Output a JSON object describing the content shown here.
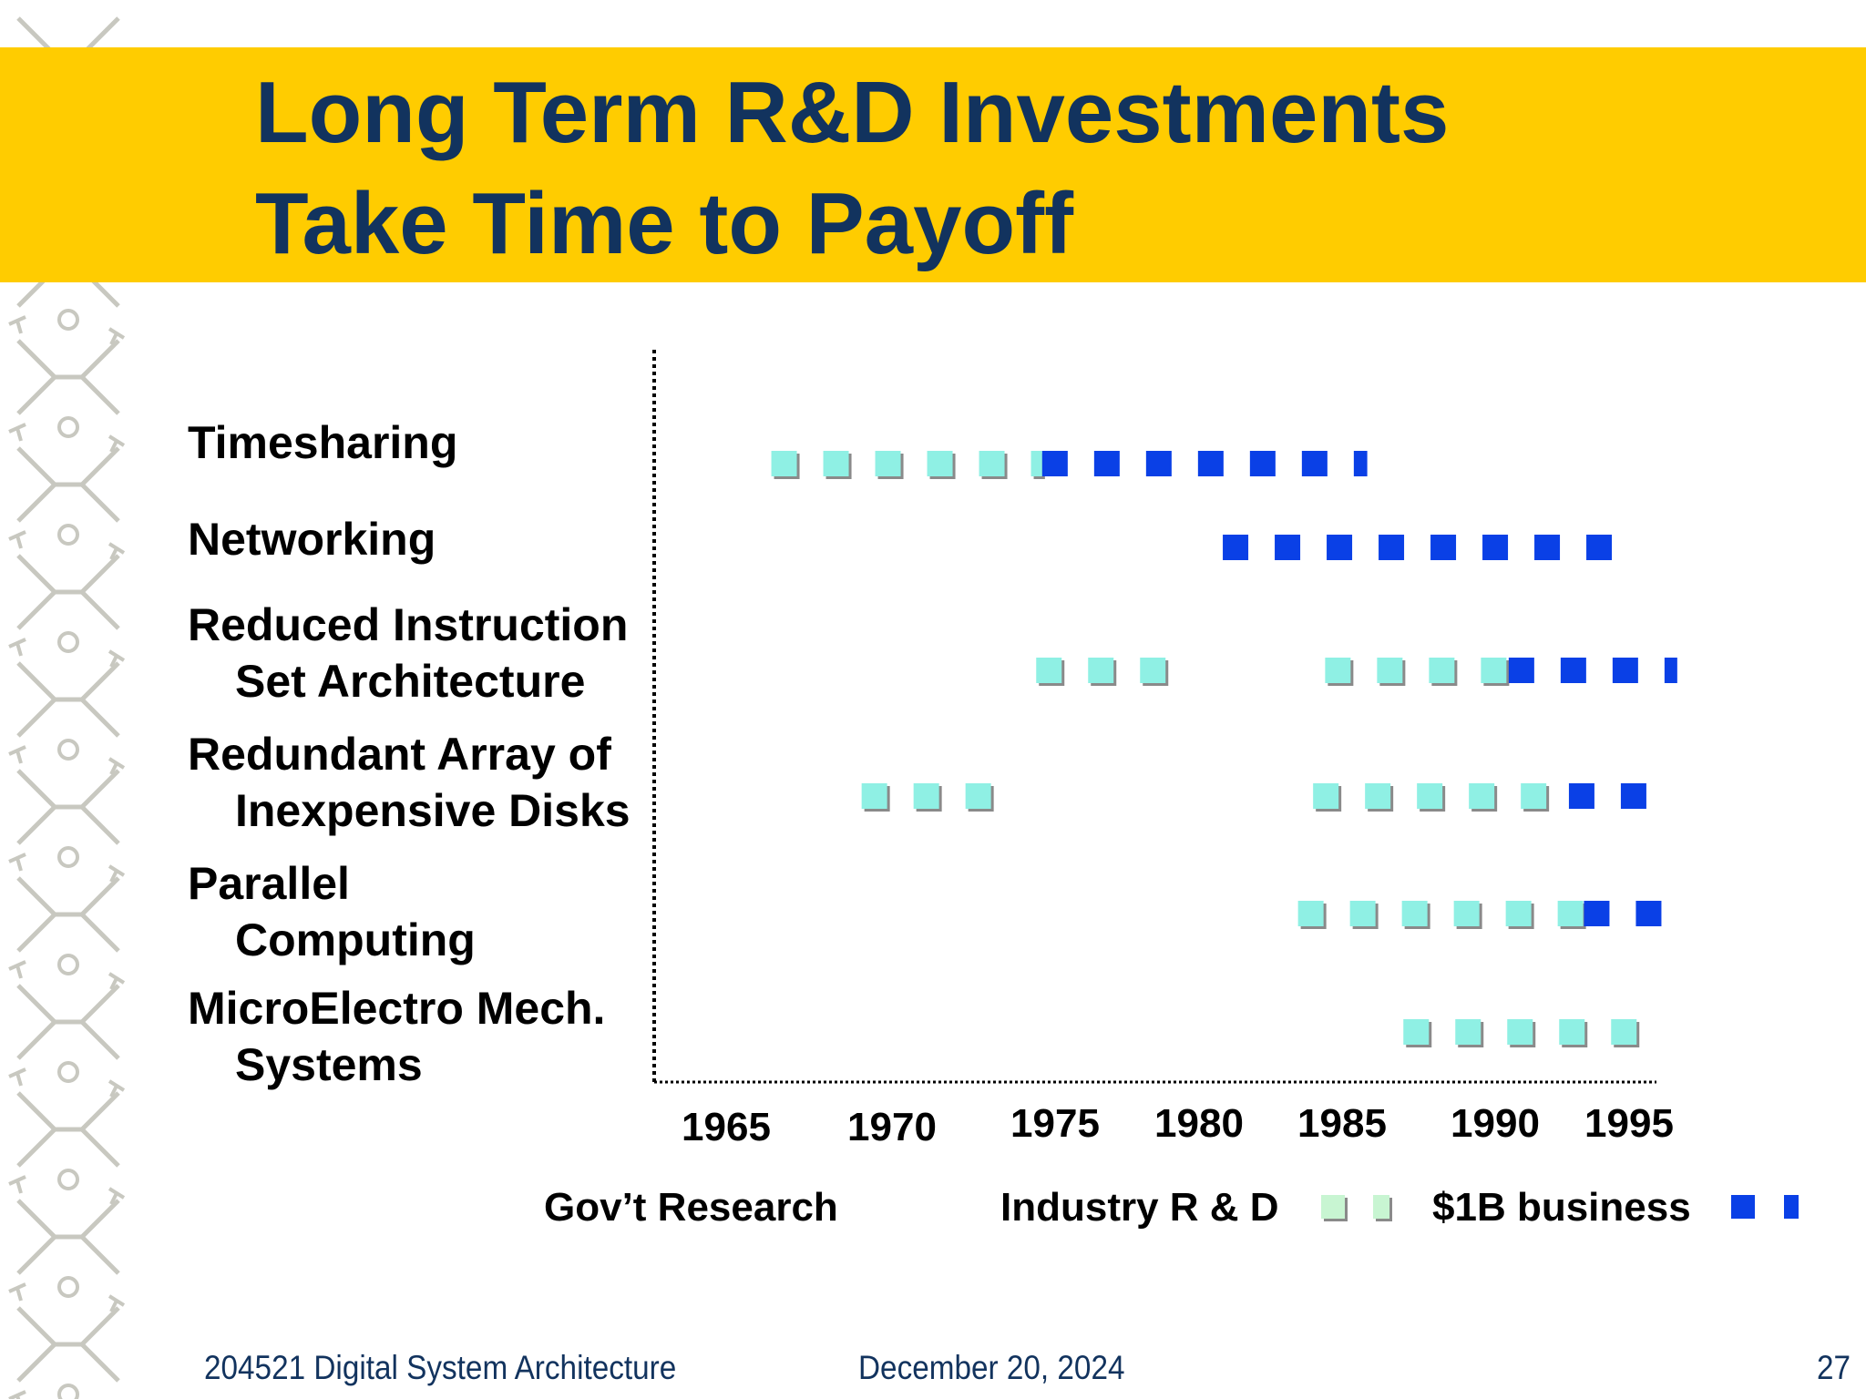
{
  "slide": {
    "title_line_1": "Long Term R&D Investments",
    "title_line_2": "Take Time to Payoff",
    "colors": {
      "title_band": "#ffcc00",
      "title_text": "#12335e",
      "industry_rd": "#8ff0e4",
      "business": "#0a40e6",
      "pattern": "#c8c8c0"
    }
  },
  "chart_data": {
    "type": "timeline",
    "x_ticks": [
      "1965",
      "1970",
      "1975",
      "1980",
      "1985",
      "1990",
      "1995"
    ],
    "xlim": [
      1965,
      1995
    ],
    "rows": [
      {
        "label_1": "Timesharing",
        "label_2": "",
        "segments": [
          {
            "kind": "industry",
            "start": 1966.5,
            "end": 1975.5
          },
          {
            "kind": "business",
            "start": 1975.5,
            "end": 1986.3
          }
        ]
      },
      {
        "label_1": "Networking",
        "label_2": "",
        "segments": [
          {
            "kind": "business",
            "start": 1981.5,
            "end": 1995.0
          }
        ]
      },
      {
        "label_1": "Reduced Instruction",
        "label_2": "Set Architecture",
        "segments": [
          {
            "kind": "industry",
            "start": 1975.3,
            "end": 1980.5
          },
          {
            "kind": "industry",
            "start": 1984.9,
            "end": 1991.0
          },
          {
            "kind": "business",
            "start": 1991.0,
            "end": 1996.6
          }
        ]
      },
      {
        "label_1": "Redundant Array of",
        "label_2": "Inexpensive Disks",
        "segments": [
          {
            "kind": "industry",
            "start": 1969.5,
            "end": 1974.5
          },
          {
            "kind": "industry",
            "start": 1984.5,
            "end": 1993.0
          },
          {
            "kind": "business",
            "start": 1993.0,
            "end": 1996.5
          }
        ]
      },
      {
        "label_1": "Parallel",
        "label_2": "Computing",
        "segments": [
          {
            "kind": "industry",
            "start": 1984.0,
            "end": 1993.5
          },
          {
            "kind": "business",
            "start": 1993.5,
            "end": 1996.5
          }
        ]
      },
      {
        "label_1": "MicroElectro Mech.",
        "label_2": "Systems",
        "segments": [
          {
            "kind": "industry",
            "start": 1987.5,
            "end": 1996.0
          }
        ]
      }
    ],
    "legend": [
      {
        "label": "Gov’t Research",
        "kind": "gov"
      },
      {
        "label": "Industry R & D",
        "kind": "industry"
      },
      {
        "label": "$1B business",
        "kind": "business"
      }
    ]
  },
  "footer": {
    "course": "204521 Digital System Architecture",
    "date": "December 20, 2024",
    "page": "27"
  }
}
